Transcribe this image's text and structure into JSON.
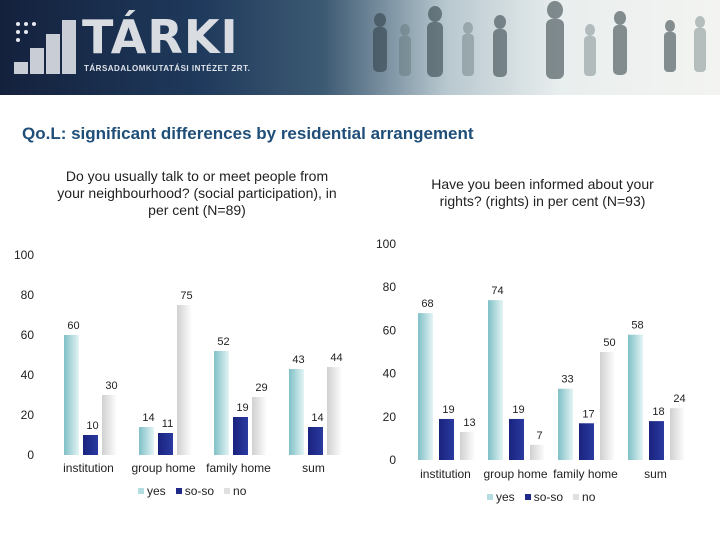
{
  "header": {
    "brand": "TÁRKI",
    "tagline": "TÁRSADALOMKUTATÁSI INTÉZET ZRT."
  },
  "page_title": "Qo.L: significant differences by residential arrangement",
  "colors": {
    "yes": "#b3dde0",
    "so-so": "#1f2a8a",
    "no": "#f2f2f2",
    "title": "#1f4e79"
  },
  "chart_data": [
    {
      "type": "bar",
      "title": "Do you usually talk to or meet people from your neighbourhood? (social participation), in per cent (N=89)",
      "categories": [
        "institution",
        "group home",
        "family home",
        "sum"
      ],
      "series": [
        {
          "name": "yes",
          "values": [
            60,
            14,
            52,
            43
          ]
        },
        {
          "name": "so-so",
          "values": [
            10,
            11,
            19,
            14
          ]
        },
        {
          "name": "no",
          "values": [
            30,
            75,
            29,
            44
          ]
        }
      ],
      "ylim": [
        0,
        100
      ],
      "yticks": [
        "0",
        "20",
        "40",
        "60",
        "80",
        "100"
      ],
      "legend": "bottom"
    },
    {
      "type": "bar",
      "title": "Have you been informed about your rights? (rights) in per cent (N=93)",
      "categories": [
        "institution",
        "group home",
        "family home",
        "sum"
      ],
      "series": [
        {
          "name": "yes",
          "values": [
            68,
            74,
            33,
            58
          ]
        },
        {
          "name": "so-so",
          "values": [
            19,
            19,
            17,
            18
          ]
        },
        {
          "name": "no",
          "values": [
            13,
            7,
            50,
            24
          ]
        }
      ],
      "ylim": [
        0,
        100
      ],
      "yticks": [
        "0",
        "20",
        "40",
        "60",
        "80",
        "100"
      ],
      "legend": "bottom"
    }
  ]
}
